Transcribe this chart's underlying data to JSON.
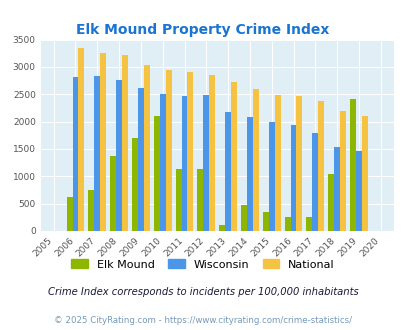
{
  "title": "Elk Mound Property Crime Index",
  "years": [
    2005,
    2006,
    2007,
    2008,
    2009,
    2010,
    2011,
    2012,
    2013,
    2014,
    2015,
    2016,
    2017,
    2018,
    2019,
    2020
  ],
  "elk_mound": [
    0,
    620,
    750,
    1370,
    1700,
    2100,
    1130,
    1130,
    115,
    470,
    350,
    250,
    255,
    1040,
    2410,
    0
  ],
  "wisconsin": [
    0,
    2810,
    2830,
    2760,
    2620,
    2510,
    2460,
    2480,
    2185,
    2090,
    1985,
    1940,
    1800,
    1545,
    1460,
    0
  ],
  "national": [
    0,
    3340,
    3255,
    3215,
    3040,
    2950,
    2910,
    2850,
    2720,
    2595,
    2490,
    2470,
    2370,
    2200,
    2110,
    0
  ],
  "elk_mound_color": "#8db600",
  "wisconsin_color": "#4b96e8",
  "national_color": "#f5c242",
  "plot_bg": "#e0eef5",
  "ylim": [
    0,
    3500
  ],
  "legend_labels": [
    "Elk Mound",
    "Wisconsin",
    "National"
  ],
  "bar_width": 0.27,
  "footnote1": "Crime Index corresponds to incidents per 100,000 inhabitants",
  "footnote2": "© 2025 CityRating.com - https://www.cityrating.com/crime-statistics/"
}
